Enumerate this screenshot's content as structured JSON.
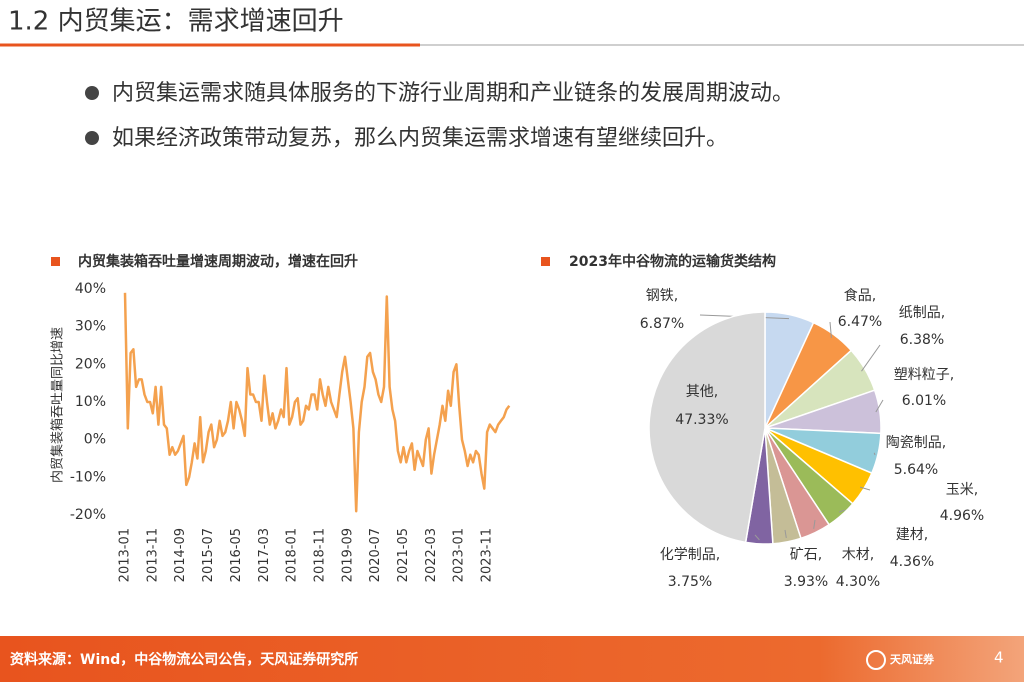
{
  "header": {
    "title": "1.2 内贸集运：需求增速回升"
  },
  "bullets": [
    "内贸集运需求随具体服务的下游行业周期和产业链条的发展周期波动。",
    "如果经济政策带动复苏，那么内贸集运需求增速有望继续回升。"
  ],
  "chart_data": [
    {
      "type": "line",
      "title": "内贸集装箱吞吐量增速周期波动，增速在回升",
      "y_label": "内贸集装箱吞吐量同比增速",
      "categories": [
        "2013-01",
        null,
        null,
        null,
        null,
        null,
        null,
        null,
        null,
        null,
        "2013-11",
        null,
        null,
        null,
        null,
        null,
        null,
        null,
        null,
        null,
        "2014-09",
        null,
        null,
        null,
        null,
        null,
        null,
        null,
        null,
        null,
        "2015-07",
        null,
        null,
        null,
        null,
        null,
        null,
        null,
        null,
        null,
        "2016-05",
        null,
        null,
        null,
        null,
        null,
        null,
        null,
        null,
        null,
        "2017-03",
        null,
        null,
        null,
        null,
        null,
        null,
        null,
        null,
        null,
        "2018-01",
        null,
        null,
        null,
        null,
        null,
        null,
        null,
        null,
        null,
        "2018-11",
        null,
        null,
        null,
        null,
        null,
        null,
        null,
        null,
        null,
        "2019-09",
        null,
        null,
        null,
        null,
        null,
        null,
        null,
        null,
        null,
        "2020-07",
        null,
        null,
        null,
        null,
        null,
        null,
        null,
        null,
        null,
        "2021-05",
        null,
        null,
        null,
        null,
        null,
        null,
        null,
        null,
        null,
        "2022-03",
        null,
        null,
        null,
        null,
        null,
        null,
        null,
        null,
        null,
        "2023-01",
        null,
        null,
        null,
        null,
        null,
        null,
        null,
        null,
        null,
        "2023-11",
        null,
        null,
        null,
        null,
        null,
        null,
        null,
        null
      ],
      "series": [
        {
          "color": "#f4a14e",
          "values": [
            39,
            3,
            23,
            24,
            14,
            16,
            16,
            12,
            10,
            10,
            7,
            14,
            4,
            14,
            4,
            3,
            -4,
            -2,
            -4,
            -3,
            -1,
            1,
            -12,
            -10,
            -6,
            -1,
            -5,
            6,
            -6,
            -3,
            2,
            4,
            -2,
            0,
            5,
            1,
            2,
            5,
            10,
            3,
            10,
            8,
            5,
            1,
            19,
            12,
            12,
            10,
            10,
            5,
            17,
            10,
            4,
            7,
            3,
            5,
            8,
            6,
            19,
            4,
            6,
            10,
            11,
            4,
            5,
            9,
            8,
            12,
            12,
            8,
            16,
            12,
            9,
            14,
            10,
            8,
            6,
            12,
            18,
            22,
            16,
            10,
            3,
            -19,
            2,
            10,
            14,
            22,
            23,
            18,
            16,
            12,
            10,
            14,
            38,
            14,
            8,
            5,
            -3,
            -6,
            -2,
            -6,
            -3,
            -1,
            -8,
            -3,
            -5,
            -7,
            0,
            3,
            -9,
            -4,
            0,
            4,
            9,
            5,
            13,
            9,
            18,
            20,
            9,
            0,
            -3,
            -7,
            -4,
            -6,
            -3,
            -4,
            -9,
            -13,
            2,
            4,
            3,
            2,
            4,
            5,
            6,
            8,
            9
          ]
        }
      ],
      "ylim": [
        -20,
        40
      ],
      "yticks": [
        {
          "value": -20,
          "label": "-20%"
        },
        {
          "value": -10,
          "label": "-10%"
        },
        {
          "value": 0,
          "label": "0%"
        },
        {
          "value": 10,
          "label": "10%"
        },
        {
          "value": 20,
          "label": "20%"
        },
        {
          "value": 30,
          "label": "30%"
        },
        {
          "value": 40,
          "label": "40%"
        }
      ]
    },
    {
      "type": "pie",
      "title": "2023年中谷物流的运输货类结构",
      "categories": [
        "钢铁,",
        "食品,",
        "纸制品,",
        "塑料粒子,",
        "陶瓷制品,",
        "玉米,",
        "建材,",
        "木材,",
        "矿石,",
        "化学制品,",
        "其他,"
      ],
      "values": [
        6.87,
        6.47,
        6.38,
        6.01,
        5.64,
        4.96,
        4.36,
        4.3,
        3.93,
        3.75,
        47.33
      ],
      "value_labels": [
        "6.87%",
        "6.47%",
        "6.38%",
        "6.01%",
        "5.64%",
        "4.96%",
        "4.36%",
        "4.30%",
        "3.93%",
        "3.75%",
        "47.33%"
      ],
      "colors": [
        "#c6d9f0",
        "#f79646",
        "#d7e4bd",
        "#ccc1da",
        "#92cddc",
        "#ffc000",
        "#9bbb59",
        "#da9694",
        "#c4bd97",
        "#8064a2",
        "#d9d9d9"
      ]
    }
  ],
  "footer": {
    "source": "资料来源：Wind，中谷物流公司公告，天风证券研究所",
    "logo": "天风证券",
    "page": "4"
  }
}
